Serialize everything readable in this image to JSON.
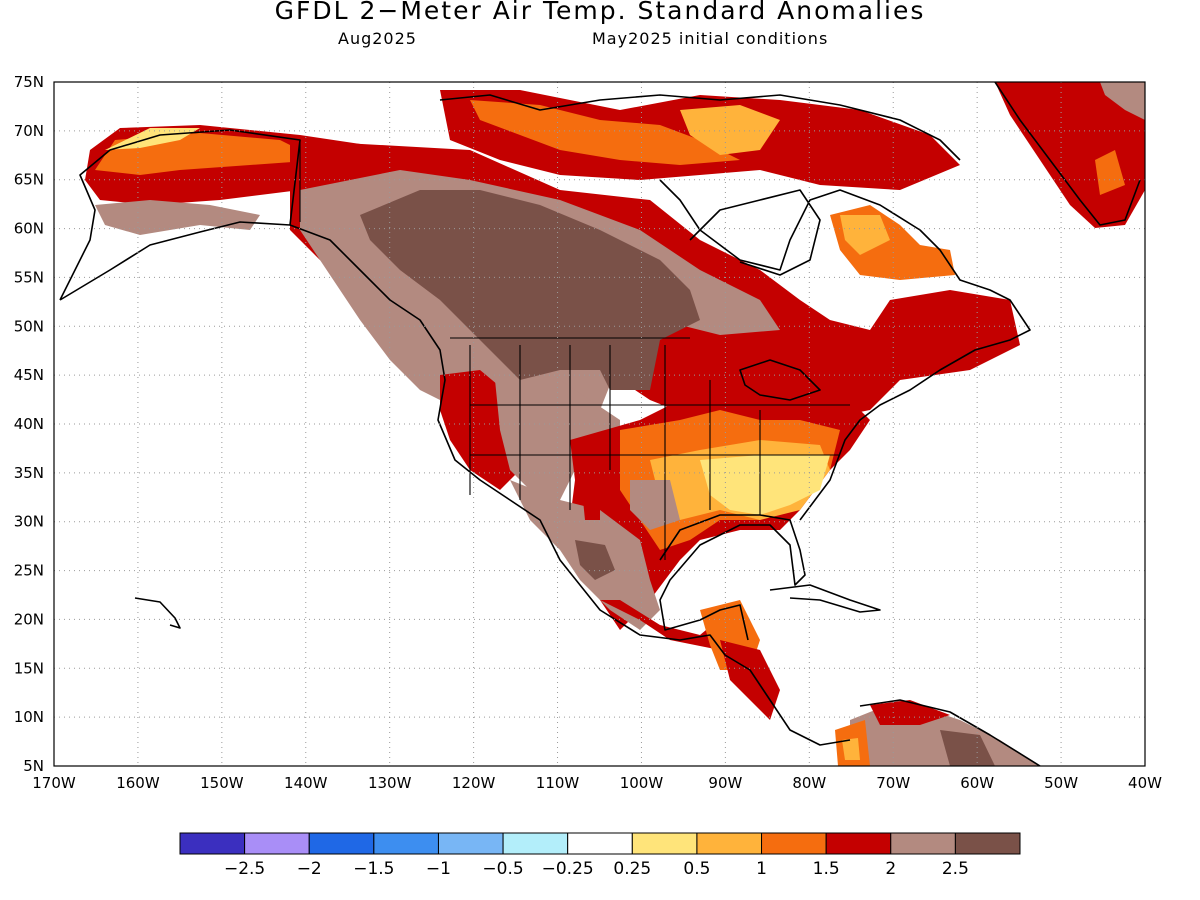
{
  "header": {
    "title": "GFDL 2−Meter Air Temp. Standard Anomalies",
    "valid_month": "Aug2025",
    "init": "May2025 initial conditions"
  },
  "axes": {
    "lat_labels": [
      "75N",
      "70N",
      "65N",
      "60N",
      "55N",
      "50N",
      "45N",
      "40N",
      "35N",
      "30N",
      "25N",
      "20N",
      "15N",
      "10N",
      "5N"
    ],
    "lon_labels": [
      "170W",
      "160W",
      "150W",
      "140W",
      "130W",
      "120W",
      "110W",
      "100W",
      "90W",
      "80W",
      "70W",
      "60W",
      "50W",
      "40W"
    ],
    "lat_range": [
      5,
      75
    ],
    "lon_range": [
      -170,
      -40
    ]
  },
  "colorbar": {
    "colors": [
      "#3b2fbf",
      "#a98ef7",
      "#1f68e6",
      "#3d8ef0",
      "#78b6f5",
      "#b3eefa",
      "#ffffff",
      "#ffe47a",
      "#ffb33b",
      "#f56d0f",
      "#c40000",
      "#b38a80",
      "#7a5148"
    ],
    "labels": [
      "−2.5",
      "−2",
      "−1.5",
      "−1",
      "−0.5",
      "−0.25",
      "0.25",
      "0.5",
      "1",
      "1.5",
      "2",
      "2.5"
    ]
  },
  "legend_colors": {
    "dark_brown": "#7a5148",
    "light_brown": "#b38a80",
    "dark_red": "#c40000",
    "orange_red": "#f56d0f",
    "orange": "#ffb33b",
    "yellow": "#ffe47a"
  }
}
